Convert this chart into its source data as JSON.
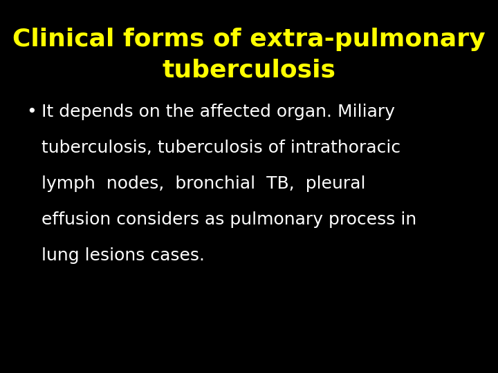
{
  "title_line1": "Clinical forms of extra-pulmonary",
  "title_line2": "tuberculosis",
  "title_color": "#ffff00",
  "title_fontsize": 26,
  "body_text_lines": [
    "It depends on the affected organ. Miliary",
    "tuberculosis, tuberculosis of intrathoracic",
    "lymph  nodes,  bronchial  TB,  pleural",
    "effusion considers as pulmonary process in",
    "lung lesions cases."
  ],
  "body_color": "#ffffff",
  "body_fontsize": 18,
  "bullet": "•",
  "background_color": "#000000",
  "fig_width": 7.2,
  "fig_height": 5.4,
  "dpi": 100
}
